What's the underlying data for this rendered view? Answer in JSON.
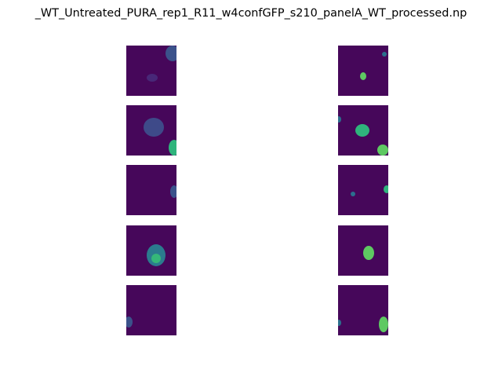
{
  "figure": {
    "title": "_WT_Untreated_PURA_rep1_R11_w4confGFP_s210_panelA_WT_processed.np",
    "panels": [
      {
        "name": "left-row-1"
      },
      {
        "name": "right-row-1"
      },
      {
        "name": "left-row-2"
      },
      {
        "name": "right-row-2"
      },
      {
        "name": "left-row-3"
      },
      {
        "name": "right-row-3"
      },
      {
        "name": "left-row-4"
      },
      {
        "name": "right-row-4"
      },
      {
        "name": "left-row-5"
      },
      {
        "name": "right-row-5"
      }
    ]
  },
  "colors": {
    "background": "#46075a",
    "dim": "#3b3f7e",
    "mid": "#2b6f8e",
    "bright": "#2fb47c",
    "hot": "#5ec962"
  }
}
